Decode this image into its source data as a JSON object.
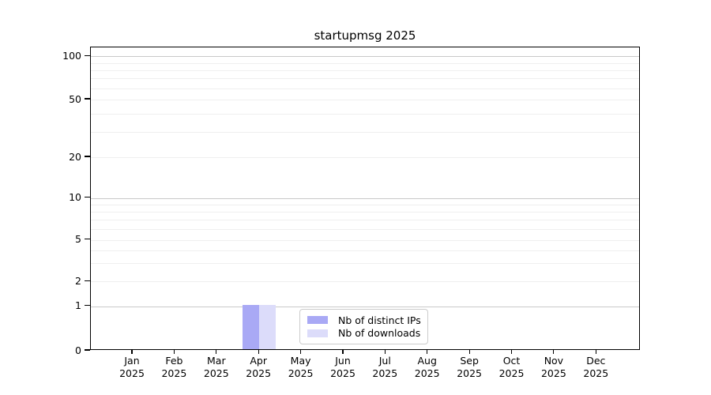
{
  "chart_data": {
    "type": "bar",
    "title": "startupmsg 2025",
    "categories": [
      {
        "m": "Jan",
        "y": "2025"
      },
      {
        "m": "Feb",
        "y": "2025"
      },
      {
        "m": "Mar",
        "y": "2025"
      },
      {
        "m": "Apr",
        "y": "2025"
      },
      {
        "m": "May",
        "y": "2025"
      },
      {
        "m": "Jun",
        "y": "2025"
      },
      {
        "m": "Jul",
        "y": "2025"
      },
      {
        "m": "Aug",
        "y": "2025"
      },
      {
        "m": "Sep",
        "y": "2025"
      },
      {
        "m": "Oct",
        "y": "2025"
      },
      {
        "m": "Nov",
        "y": "2025"
      },
      {
        "m": "Dec",
        "y": "2025"
      }
    ],
    "series": [
      {
        "name": "Nb of distinct IPs",
        "color": "#a9a9f5",
        "values": [
          0,
          0,
          0,
          1,
          0,
          0,
          0,
          0,
          0,
          0,
          0,
          0
        ]
      },
      {
        "name": "Nb of downloads",
        "color": "#dcdcfa",
        "values": [
          0,
          0,
          0,
          1,
          0,
          0,
          0,
          0,
          0,
          0,
          0,
          0
        ]
      }
    ],
    "y_axis": {
      "scale": "symlog",
      "ticks": [
        100,
        50,
        20,
        10,
        5,
        2,
        1,
        0
      ],
      "anchors": [
        [
          0,
          1.0
        ],
        [
          1,
          0.854
        ],
        [
          2,
          0.771
        ],
        [
          5,
          0.635
        ],
        [
          10,
          0.497
        ],
        [
          20,
          0.362
        ],
        [
          50,
          0.172
        ],
        [
          100,
          0.029
        ]
      ],
      "gridlines_major": [
        1,
        10,
        100
      ],
      "gridlines_minor": [
        2,
        3,
        4,
        5,
        6,
        7,
        8,
        9,
        20,
        30,
        40,
        50,
        60,
        70,
        80,
        90
      ]
    },
    "legend": {
      "position": "lower center"
    },
    "colors": {
      "grid_major": "#c9c9c9",
      "grid_minor": "#efefef",
      "spine": "#000000",
      "text": "#000000",
      "background": "#ffffff"
    }
  }
}
